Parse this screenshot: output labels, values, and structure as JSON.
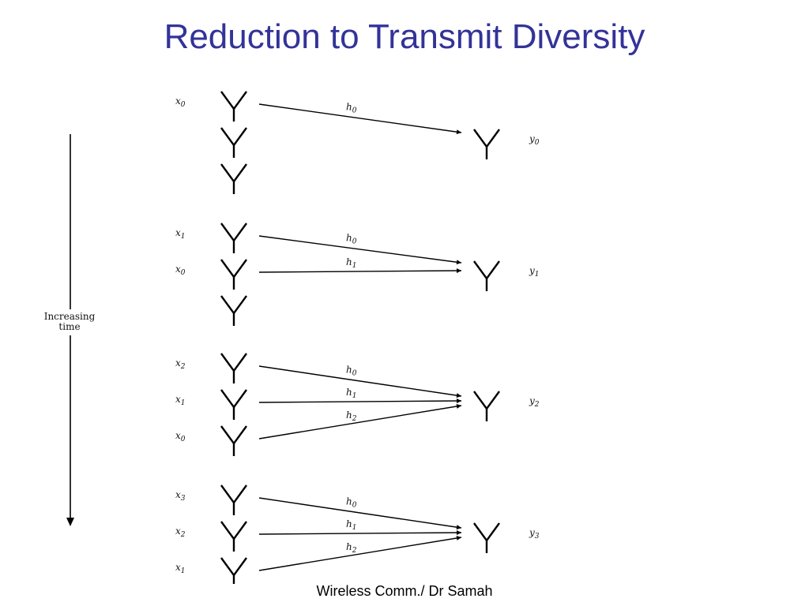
{
  "slide": {
    "title": "Reduction to Transmit Diversity",
    "footer": "Wireless Comm./ Dr Samah"
  },
  "diagram": {
    "time_axis": {
      "label_line1": "Increasing",
      "label_line2": "time",
      "direction": "down"
    },
    "slots": [
      {
        "tx_antennas": [
          {
            "label": "x",
            "sub": "0"
          },
          {
            "label": "",
            "sub": ""
          },
          {
            "label": "",
            "sub": ""
          }
        ],
        "links": [
          {
            "from": 0,
            "label": "h",
            "sub": "0"
          }
        ],
        "rx": {
          "label": "y",
          "sub": "0"
        }
      },
      {
        "tx_antennas": [
          {
            "label": "x",
            "sub": "1"
          },
          {
            "label": "x",
            "sub": "0"
          },
          {
            "label": "",
            "sub": ""
          }
        ],
        "links": [
          {
            "from": 0,
            "label": "h",
            "sub": "0"
          },
          {
            "from": 1,
            "label": "h",
            "sub": "1"
          }
        ],
        "rx": {
          "label": "y",
          "sub": "1"
        }
      },
      {
        "tx_antennas": [
          {
            "label": "x",
            "sub": "2"
          },
          {
            "label": "x",
            "sub": "1"
          },
          {
            "label": "x",
            "sub": "0"
          }
        ],
        "links": [
          {
            "from": 0,
            "label": "h",
            "sub": "0"
          },
          {
            "from": 1,
            "label": "h",
            "sub": "1"
          },
          {
            "from": 2,
            "label": "h",
            "sub": "2"
          }
        ],
        "rx": {
          "label": "y",
          "sub": "2"
        }
      },
      {
        "tx_antennas": [
          {
            "label": "x",
            "sub": "3"
          },
          {
            "label": "x",
            "sub": "2"
          },
          {
            "label": "x",
            "sub": "1"
          }
        ],
        "links": [
          {
            "from": 0,
            "label": "h",
            "sub": "0"
          },
          {
            "from": 1,
            "label": "h",
            "sub": "1"
          },
          {
            "from": 2,
            "label": "h",
            "sub": "2"
          }
        ],
        "rx": {
          "label": "y",
          "sub": "3"
        }
      }
    ]
  }
}
